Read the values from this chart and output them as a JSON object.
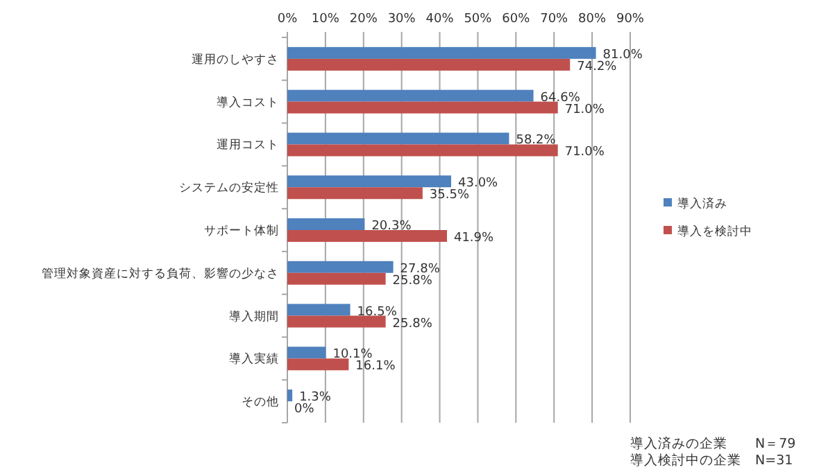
{
  "chart_data": {
    "type": "bar",
    "orientation": "horizontal",
    "categories": [
      "運用のしやすさ",
      "導入コスト",
      "運用コスト",
      "システムの安定性",
      "サポート体制",
      "管理対象資産に対する負荷、影響の少なさ",
      "導入期間",
      "導入実績",
      "その他"
    ],
    "series": [
      {
        "name": "導入済み",
        "color": "#4f81bd",
        "values": [
          81.0,
          64.6,
          58.2,
          43.0,
          20.3,
          27.8,
          16.5,
          10.1,
          1.3
        ],
        "value_labels": [
          "81.0%",
          "64.6%",
          "58.2%",
          "43.0%",
          "20.3%",
          "27.8%",
          "16.5%",
          "10.1%",
          "1.3%"
        ]
      },
      {
        "name": "導入を検討中",
        "color": "#c0504d",
        "values": [
          74.2,
          71.0,
          71.0,
          35.5,
          41.9,
          25.8,
          25.8,
          16.1,
          0
        ],
        "value_labels": [
          "74.2%",
          "71.0%",
          "71.0%",
          "35.5%",
          "41.9%",
          "25.8%",
          "25.8%",
          "16.1%",
          "0%"
        ]
      }
    ],
    "xlim": [
      0,
      90
    ],
    "xticks": [
      {
        "value": 0,
        "label": "0%"
      },
      {
        "value": 10,
        "label": "10%"
      },
      {
        "value": 20,
        "label": "20%"
      },
      {
        "value": 30,
        "label": "30%"
      },
      {
        "value": 40,
        "label": "40%"
      },
      {
        "value": 50,
        "label": "50%"
      },
      {
        "value": 60,
        "label": "60%"
      },
      {
        "value": 70,
        "label": "70%"
      },
      {
        "value": 80,
        "label": "80%"
      },
      {
        "value": 90,
        "label": "90%"
      }
    ],
    "grid": "x",
    "legend": "right",
    "annotations": [
      "導入済みの企業　　N＝79",
      "導入検討中の企業　N=31"
    ]
  }
}
